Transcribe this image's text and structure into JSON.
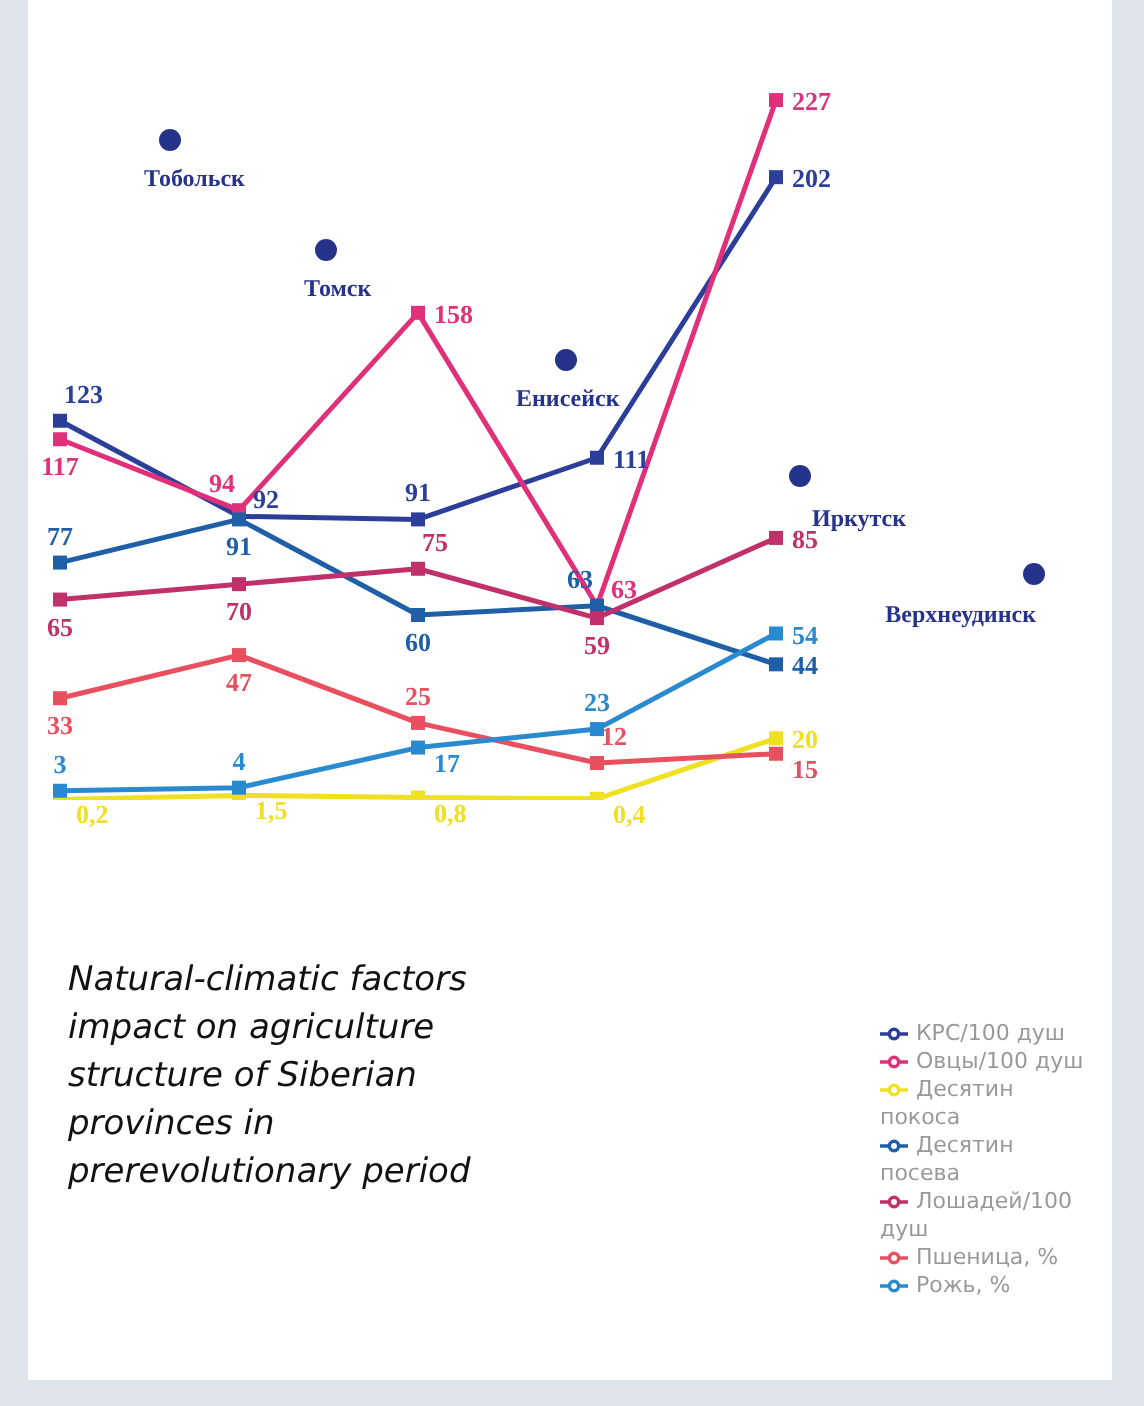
{
  "chart_data": {
    "type": "line",
    "title": "Natural-climatic factors impact on agriculture structure of Siberian provinces in prerevolutionary period",
    "categories": [
      null,
      null,
      null,
      null,
      null
    ],
    "tick_labels": false,
    "legend": "bottom right",
    "marker": "square",
    "data_labels": true,
    "series": [
      {
        "name": "КРС/100 душ",
        "color": "#2b3f9a",
        "values": [
          123,
          92,
          91,
          111,
          202
        ]
      },
      {
        "name": "Овцы/100 душ",
        "color": "#e0307a",
        "values": [
          117,
          94,
          158,
          63,
          227
        ]
      },
      {
        "name": "Десятин покоса",
        "color": "#efe020",
        "values": [
          0.2,
          1.5,
          0.8,
          0.4,
          20
        ],
        "value_labels": [
          "0,2",
          "1,5",
          "0,8",
          "0,4",
          "20"
        ]
      },
      {
        "name": "Десятин посева",
        "color": "#1f5fa8",
        "values": [
          77,
          91,
          60,
          63,
          44
        ]
      },
      {
        "name": "Лошадей/100 душ",
        "color": "#c0306a",
        "values": [
          65,
          70,
          75,
          59,
          85
        ]
      },
      {
        "name": "Пшеница, %",
        "color": "#e85060",
        "values": [
          33,
          47,
          25,
          12,
          15
        ]
      },
      {
        "name": "Рожь, %",
        "color": "#2a8ad0",
        "values": [
          3,
          4,
          17,
          23,
          54
        ]
      }
    ],
    "annotations": [
      "Тобольск",
      "Томск",
      "Енисейск",
      "Иркутск",
      "Верхнеудинск"
    ]
  }
}
